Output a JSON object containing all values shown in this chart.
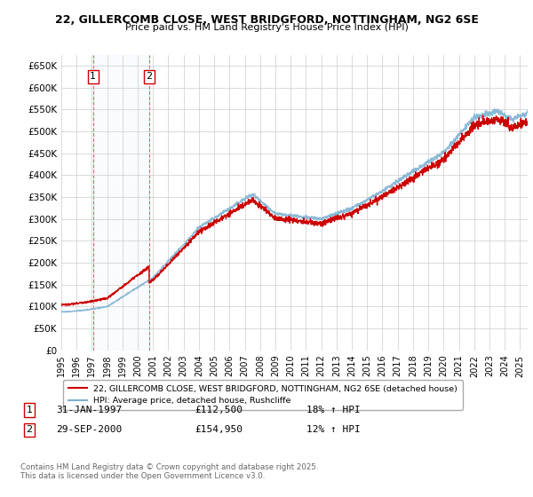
{
  "title_line1": "22, GILLERCOMB CLOSE, WEST BRIDGFORD, NOTTINGHAM, NG2 6SE",
  "title_line2": "Price paid vs. HM Land Registry's House Price Index (HPI)",
  "ylim": [
    0,
    675000
  ],
  "yticks": [
    0,
    50000,
    100000,
    150000,
    200000,
    250000,
    300000,
    350000,
    400000,
    450000,
    500000,
    550000,
    600000,
    650000
  ],
  "ytick_labels": [
    "£0",
    "£50K",
    "£100K",
    "£150K",
    "£200K",
    "£250K",
    "£300K",
    "£350K",
    "£400K",
    "£450K",
    "£500K",
    "£550K",
    "£600K",
    "£650K"
  ],
  "grid_color": "#cccccc",
  "line1_color": "#cc0000",
  "line2_color": "#7fb3d3",
  "sale1_date": 1997.08,
  "sale1_price": 112500,
  "sale2_date": 2000.75,
  "sale2_price": 154950,
  "legend_line1": "22, GILLERCOMB CLOSE, WEST BRIDGFORD, NOTTINGHAM, NG2 6SE (detached house)",
  "legend_line2": "HPI: Average price, detached house, Rushcliffe",
  "footer": "Contains HM Land Registry data © Crown copyright and database right 2025.\nThis data is licensed under the Open Government Licence v3.0.",
  "xmin": 1995.0,
  "xmax": 2025.5,
  "label1_box": "1",
  "label2_box": "2",
  "row1_date": "31-JAN-1997",
  "row1_price": "£112,500",
  "row1_hpi": "18% ↑ HPI",
  "row2_date": "29-SEP-2000",
  "row2_price": "£154,950",
  "row2_hpi": "12% ↑ HPI"
}
